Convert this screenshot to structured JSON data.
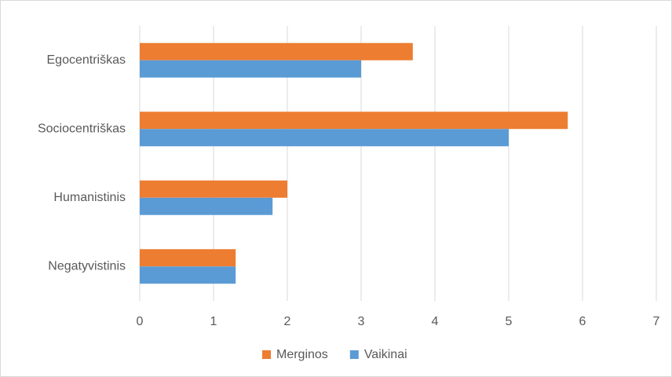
{
  "chart_data": {
    "type": "hbar",
    "categories": [
      "Egocentriškas",
      "Sociocentriškas",
      "Humanistinis",
      "Negatyvistinis"
    ],
    "series": [
      {
        "name": "Merginos",
        "color": "#ed7d31",
        "values": [
          3.7,
          5.8,
          2.0,
          1.3
        ]
      },
      {
        "name": "Vaikinai",
        "color": "#5b9bd5",
        "values": [
          3.0,
          5.0,
          1.8,
          1.3
        ]
      }
    ],
    "xlim": [
      0,
      7
    ],
    "xticks": [
      0,
      1,
      2,
      3,
      4,
      5,
      6,
      7
    ],
    "grid": true,
    "legend": "bottom"
  }
}
